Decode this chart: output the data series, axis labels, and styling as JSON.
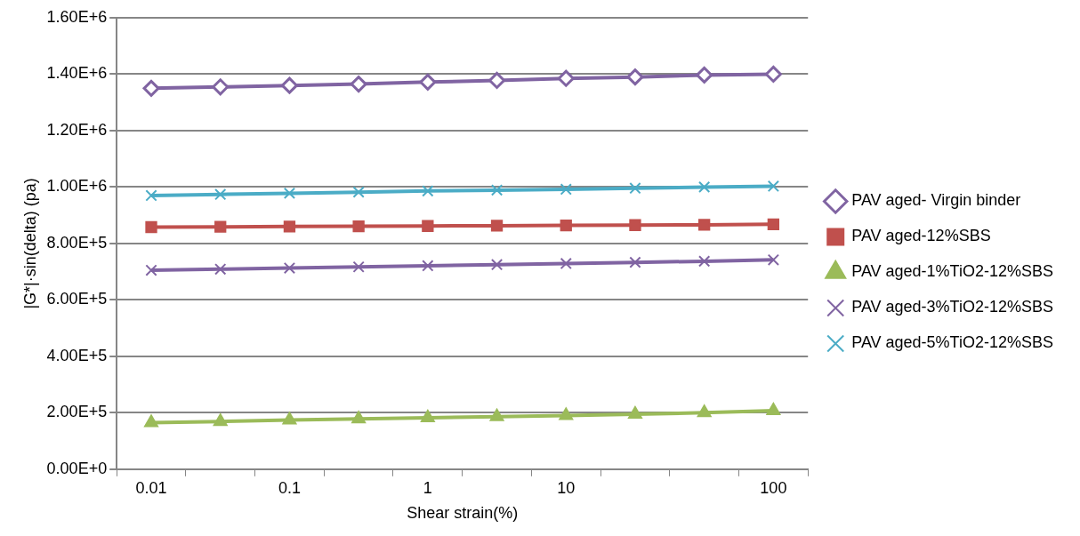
{
  "chart_data": {
    "type": "line",
    "xlabel": "Shear strain(%)",
    "ylabel": "|G*|·sin(delta) (pa)",
    "categories": [
      "0.01",
      null,
      "0.1",
      null,
      "1",
      null,
      "10",
      null,
      null,
      "100"
    ],
    "series": [
      {
        "name": "PAV aged- Virgin binder",
        "color": "#8064a2",
        "marker": "diamond",
        "values": [
          1350000,
          1355000,
          1360000,
          1365000,
          1372000,
          1378000,
          1385000,
          1390000,
          1397000,
          1400000
        ]
      },
      {
        "name": "PAV aged-12%SBS",
        "color": "#c0504d",
        "marker": "square",
        "values": [
          858000,
          859000,
          860000,
          861000,
          862000,
          863000,
          864000,
          865000,
          866000,
          868000
        ]
      },
      {
        "name": "PAV aged-1%TiO2-12%SBS",
        "color": "#9bbb59",
        "marker": "triangle",
        "values": [
          165000,
          169000,
          174000,
          178000,
          182000,
          186000,
          190000,
          195000,
          200000,
          207000
        ]
      },
      {
        "name": "PAV aged-3%TiO2-12%SBS",
        "color": "#8064a2",
        "marker": "cross",
        "values": [
          705000,
          709000,
          713000,
          717000,
          721000,
          725000,
          729000,
          733000,
          737000,
          742000
        ]
      },
      {
        "name": "PAV aged-5%TiO2-12%SBS",
        "color": "#4bacc6",
        "marker": "cross",
        "values": [
          970000,
          974000,
          978000,
          982000,
          986000,
          989000,
          992000,
          996000,
          1000000,
          1003000
        ]
      }
    ],
    "ylim": [
      0,
      1600000
    ],
    "yticks": [
      {
        "value": 0,
        "label": "0.00E+0"
      },
      {
        "value": 200000,
        "label": "2.00E+5"
      },
      {
        "value": 400000,
        "label": "4.00E+5"
      },
      {
        "value": 600000,
        "label": "6.00E+5"
      },
      {
        "value": 800000,
        "label": "8.00E+5"
      },
      {
        "value": 1000000,
        "label": "1.00E+6"
      },
      {
        "value": 1200000,
        "label": "1.20E+6"
      },
      {
        "value": 1400000,
        "label": "1.40E+6"
      },
      {
        "value": 1600000,
        "label": "1.60E+6"
      }
    ],
    "grid": "y",
    "legend": "right",
    "line_style": "solid"
  }
}
